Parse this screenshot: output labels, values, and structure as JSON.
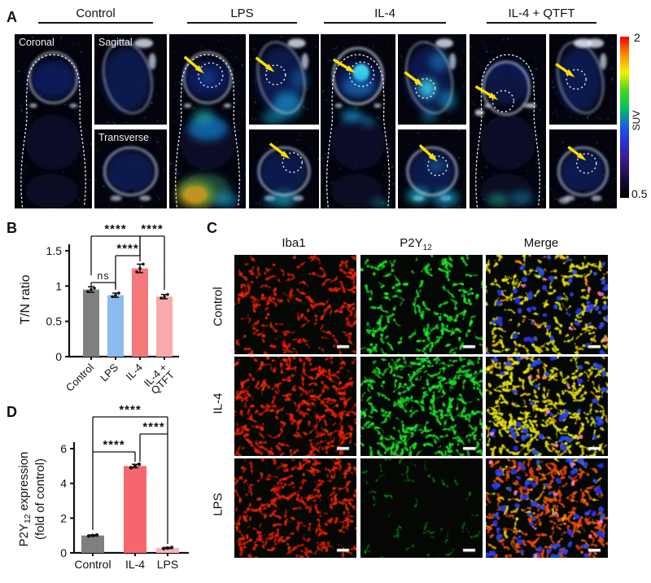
{
  "panels": {
    "a": {
      "label": "A",
      "groups": [
        {
          "id": "control",
          "label": "Control",
          "arrows": false
        },
        {
          "id": "lps",
          "label": "LPS",
          "arrows": true
        },
        {
          "id": "il4",
          "label": "IL-4",
          "arrows": true
        },
        {
          "id": "il4-qtft",
          "label": "IL-4 + QTFT",
          "arrows": true
        }
      ],
      "view_labels": {
        "coronal": "Coronal",
        "sagittal": "Sagittal",
        "transverse": "Transverse"
      },
      "colorbar": {
        "max": "2",
        "min": "0.5",
        "title": "SUV"
      }
    },
    "b": {
      "label": "B"
    },
    "c": {
      "label": "C",
      "columns": [
        {
          "text": "Iba1",
          "sub": ""
        },
        {
          "text": "P2Y",
          "sub": "12"
        },
        {
          "text": "Merge",
          "sub": ""
        }
      ],
      "rows": [
        {
          "label": "Control",
          "iba1_density": 150,
          "p2y12_density": 135,
          "p2y12_dim": false,
          "merge": {
            "yellow": 150,
            "red": 0,
            "orange": 18,
            "blue": 55,
            "pink": 6
          }
        },
        {
          "label": "IL-4",
          "iba1_density": 245,
          "p2y12_density": 245,
          "p2y12_dim": false,
          "merge": {
            "yellow": 255,
            "red": 0,
            "orange": 8,
            "blue": 45,
            "pink": 8
          }
        },
        {
          "label": "LPS",
          "iba1_density": 215,
          "p2y12_density": 42,
          "p2y12_dim": true,
          "merge": {
            "yellow": 26,
            "red": 195,
            "orange": 20,
            "blue": 70,
            "pink": 10
          }
        }
      ]
    },
    "d": {
      "label": "D"
    }
  },
  "chart_data": [
    {
      "panel": "B",
      "type": "bar",
      "categories": [
        "Control",
        "LPS",
        "IL-4",
        "IL-4 + QTFT"
      ],
      "tick_lines": [
        [
          "Control"
        ],
        [
          "LPS"
        ],
        [
          "IL-4"
        ],
        [
          "IL-4 +",
          "QTFT"
        ]
      ],
      "values": [
        0.95,
        0.87,
        1.25,
        0.85
      ],
      "errors": [
        0.04,
        0.03,
        0.06,
        0.03
      ],
      "points": [
        [
          0.92,
          0.95,
          0.97
        ],
        [
          0.85,
          0.87,
          0.9
        ],
        [
          1.2,
          1.25,
          1.31
        ],
        [
          0.83,
          0.85,
          0.88
        ]
      ],
      "bar_colors": [
        "#7f7f7f",
        "#8cbbee",
        "#f6777a",
        "#f9a8ab"
      ],
      "ylabel": "T/N ratio",
      "yticks": [
        0,
        0.5,
        1,
        1.5
      ],
      "ytick_labels": [
        "0",
        "0.5",
        "1",
        "1.5"
      ],
      "ylim": [
        0,
        1.5
      ],
      "grid": false,
      "significance": [
        {
          "between": [
            "Control",
            "LPS"
          ],
          "label": "ns"
        },
        {
          "between": [
            "Control",
            "IL-4"
          ],
          "label": "****"
        },
        {
          "between": [
            "LPS",
            "IL-4"
          ],
          "label": "****"
        },
        {
          "between": [
            "IL-4",
            "IL-4 + QTFT"
          ],
          "label": "****"
        }
      ]
    },
    {
      "panel": "D",
      "type": "bar",
      "categories": [
        "Control",
        "IL-4",
        "LPS"
      ],
      "tick_lines": [
        [
          "Control"
        ],
        [
          "IL-4"
        ],
        [
          "LPS"
        ]
      ],
      "values": [
        1.0,
        5.0,
        0.28
      ],
      "errors": [
        0.03,
        0.1,
        0.03
      ],
      "points": [
        [
          0.97,
          1.0,
          1.03
        ],
        [
          4.9,
          5.0,
          5.1
        ],
        [
          0.25,
          0.28,
          0.31
        ]
      ],
      "bar_colors": [
        "#7f7f7f",
        "#f5676d",
        "#fbb4b8"
      ],
      "ylabel": "P2Y12 expression (fold of control)",
      "ylabel_lines": [
        {
          "pre": "P2Y",
          "sub": "12",
          "post": " expression"
        },
        {
          "pre": "(fold of control)",
          "sub": "",
          "post": ""
        }
      ],
      "yticks": [
        0,
        2,
        4,
        6
      ],
      "ytick_labels": [
        "0",
        "2",
        "4",
        "6"
      ],
      "ylim": [
        0,
        6
      ],
      "grid": false,
      "significance": [
        {
          "between": [
            "Control",
            "IL-4"
          ],
          "label": "****"
        },
        {
          "between": [
            "IL-4",
            "LPS"
          ],
          "label": "****"
        },
        {
          "between": [
            "Control",
            "LPS"
          ],
          "label": "****"
        }
      ]
    }
  ]
}
